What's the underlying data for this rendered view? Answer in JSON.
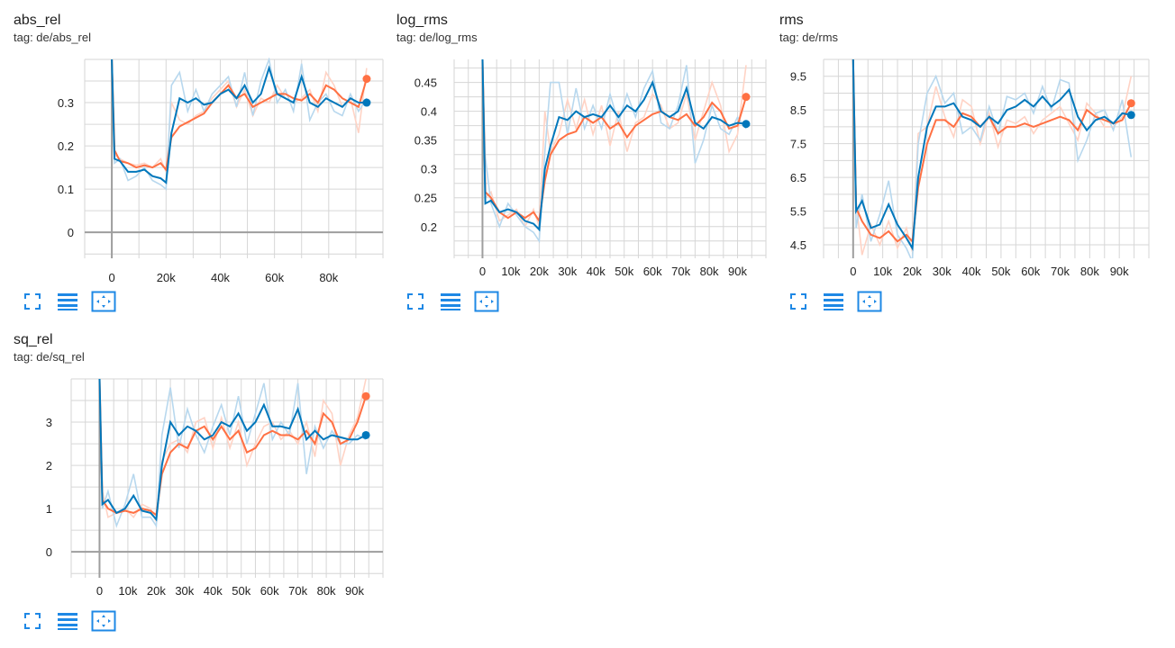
{
  "colors": {
    "blue": "#0077bb",
    "orange": "#ff7043",
    "blue_faint": "#b8d8ee",
    "orange_faint": "#ffd3c5",
    "grid": "#d6d6d6",
    "axis": "#9e9e9e",
    "icon": "#1e88e5"
  },
  "toolbar": {
    "fullscreen_icon": "fullscreen-icon",
    "legend_icon": "legend-icon",
    "fit_icon": "fit-domain-icon"
  },
  "chart_data": [
    {
      "type": "line",
      "title": "abs_rel",
      "tag": "tag: de/abs_rel",
      "xlim": [
        -10000,
        100000
      ],
      "ylim": [
        -0.06,
        0.4
      ],
      "xticks": [
        0,
        20000,
        40000,
        60000,
        80000
      ],
      "xtick_labels": [
        "0",
        "20k",
        "40k",
        "60k",
        "80k"
      ],
      "yticks": [
        0,
        0.1,
        0.2,
        0.3
      ],
      "ytick_labels": [
        "0",
        "0.1",
        "0.2",
        "0.3"
      ],
      "series": [
        {
          "name": "run-orange-smoothed",
          "color": "orange",
          "x": [
            0,
            1000,
            3000,
            6000,
            9000,
            12000,
            15000,
            18000,
            20000,
            22000,
            25000,
            28000,
            31000,
            34000,
            37000,
            40000,
            43000,
            46000,
            49000,
            52000,
            55000,
            58000,
            61000,
            64000,
            67000,
            70000,
            73000,
            76000,
            79000,
            82000,
            85000,
            88000,
            91000,
            94000
          ],
          "y": [
            0.4,
            0.19,
            0.165,
            0.16,
            0.15,
            0.155,
            0.15,
            0.16,
            0.145,
            0.22,
            0.245,
            0.255,
            0.265,
            0.275,
            0.3,
            0.32,
            0.34,
            0.31,
            0.32,
            0.29,
            0.3,
            0.31,
            0.32,
            0.32,
            0.31,
            0.305,
            0.32,
            0.3,
            0.34,
            0.33,
            0.31,
            0.3,
            0.29,
            0.355
          ],
          "faint": [
            0.4,
            0.18,
            0.17,
            0.16,
            0.155,
            0.16,
            0.15,
            0.17,
            0.14,
            0.3,
            0.26,
            0.25,
            0.27,
            0.28,
            0.31,
            0.33,
            0.35,
            0.29,
            0.33,
            0.27,
            0.31,
            0.3,
            0.34,
            0.31,
            0.3,
            0.31,
            0.33,
            0.28,
            0.37,
            0.34,
            0.29,
            0.31,
            0.23,
            0.38
          ]
        },
        {
          "name": "run-blue-smoothed",
          "color": "blue",
          "x": [
            0,
            1000,
            3000,
            6000,
            9000,
            12000,
            15000,
            18000,
            20000,
            22000,
            25000,
            28000,
            31000,
            34000,
            37000,
            40000,
            43000,
            46000,
            49000,
            52000,
            55000,
            58000,
            61000,
            64000,
            67000,
            70000,
            73000,
            76000,
            79000,
            82000,
            85000,
            88000,
            91000,
            94000
          ],
          "y": [
            0.4,
            0.17,
            0.165,
            0.14,
            0.14,
            0.145,
            0.13,
            0.125,
            0.115,
            0.23,
            0.31,
            0.3,
            0.31,
            0.295,
            0.3,
            0.32,
            0.33,
            0.31,
            0.34,
            0.3,
            0.32,
            0.38,
            0.32,
            0.31,
            0.3,
            0.36,
            0.3,
            0.29,
            0.31,
            0.3,
            0.29,
            0.31,
            0.3,
            0.3
          ],
          "faint": [
            0.4,
            0.16,
            0.17,
            0.12,
            0.13,
            0.15,
            0.12,
            0.11,
            0.1,
            0.34,
            0.37,
            0.28,
            0.33,
            0.28,
            0.32,
            0.34,
            0.36,
            0.29,
            0.37,
            0.27,
            0.35,
            0.4,
            0.3,
            0.33,
            0.28,
            0.39,
            0.26,
            0.3,
            0.32,
            0.28,
            0.27,
            0.32,
            0.28,
            0.31
          ]
        }
      ]
    },
    {
      "type": "line",
      "title": "log_rms",
      "tag": "tag: de/log_rms",
      "xlim": [
        -10000,
        100000
      ],
      "ylim": [
        0.145,
        0.49
      ],
      "xticks": [
        0,
        10000,
        20000,
        30000,
        40000,
        50000,
        60000,
        70000,
        80000,
        90000
      ],
      "xtick_labels": [
        "0",
        "10k",
        "20k",
        "30k",
        "40k",
        "50k",
        "60k",
        "70k",
        "80k",
        "90k"
      ],
      "yticks": [
        0.2,
        0.25,
        0.3,
        0.35,
        0.4,
        0.45
      ],
      "ytick_labels": [
        "0.2",
        "0.25",
        "0.3",
        "0.35",
        "0.4",
        "0.45"
      ],
      "series": [
        {
          "name": "run-orange-smoothed",
          "color": "orange",
          "x": [
            0,
            1000,
            3000,
            6000,
            9000,
            12000,
            15000,
            18000,
            20000,
            22000,
            24000,
            27000,
            30000,
            33000,
            36000,
            39000,
            42000,
            45000,
            48000,
            51000,
            54000,
            57000,
            60000,
            63000,
            66000,
            69000,
            72000,
            75000,
            78000,
            81000,
            84000,
            87000,
            90000,
            93000
          ],
          "y": [
            0.49,
            0.26,
            0.25,
            0.225,
            0.215,
            0.225,
            0.215,
            0.225,
            0.21,
            0.28,
            0.325,
            0.35,
            0.36,
            0.365,
            0.39,
            0.38,
            0.39,
            0.37,
            0.38,
            0.355,
            0.375,
            0.385,
            0.395,
            0.4,
            0.39,
            0.385,
            0.395,
            0.375,
            0.39,
            0.415,
            0.4,
            0.37,
            0.375,
            0.425
          ],
          "faint": [
            0.49,
            0.25,
            0.26,
            0.21,
            0.22,
            0.23,
            0.2,
            0.23,
            0.2,
            0.4,
            0.33,
            0.36,
            0.42,
            0.37,
            0.42,
            0.36,
            0.41,
            0.34,
            0.4,
            0.33,
            0.38,
            0.39,
            0.43,
            0.41,
            0.37,
            0.38,
            0.43,
            0.35,
            0.4,
            0.45,
            0.41,
            0.33,
            0.36,
            0.48
          ]
        },
        {
          "name": "run-blue-smoothed",
          "color": "blue",
          "x": [
            0,
            1000,
            3000,
            6000,
            9000,
            12000,
            15000,
            18000,
            20000,
            22000,
            24000,
            27000,
            30000,
            33000,
            36000,
            39000,
            42000,
            45000,
            48000,
            51000,
            54000,
            57000,
            60000,
            63000,
            66000,
            69000,
            72000,
            75000,
            78000,
            81000,
            84000,
            87000,
            90000,
            93000
          ],
          "y": [
            0.49,
            0.24,
            0.245,
            0.225,
            0.23,
            0.225,
            0.21,
            0.205,
            0.195,
            0.3,
            0.34,
            0.39,
            0.385,
            0.4,
            0.39,
            0.395,
            0.39,
            0.41,
            0.39,
            0.41,
            0.4,
            0.42,
            0.45,
            0.4,
            0.39,
            0.4,
            0.44,
            0.38,
            0.37,
            0.39,
            0.385,
            0.375,
            0.38,
            0.378
          ],
          "faint": [
            0.49,
            0.32,
            0.24,
            0.2,
            0.24,
            0.22,
            0.2,
            0.19,
            0.175,
            0.33,
            0.45,
            0.45,
            0.36,
            0.44,
            0.37,
            0.41,
            0.37,
            0.43,
            0.38,
            0.43,
            0.39,
            0.44,
            0.47,
            0.38,
            0.37,
            0.41,
            0.48,
            0.31,
            0.35,
            0.41,
            0.37,
            0.36,
            0.39,
            0.37
          ]
        }
      ]
    },
    {
      "type": "line",
      "title": "rms",
      "tag": "tag: de/rms",
      "xlim": [
        -10000,
        100000
      ],
      "ylim": [
        4.1,
        10
      ],
      "xticks": [
        0,
        10000,
        20000,
        30000,
        40000,
        50000,
        60000,
        70000,
        80000,
        90000
      ],
      "xtick_labels": [
        "0",
        "10k",
        "20k",
        "30k",
        "40k",
        "50k",
        "60k",
        "70k",
        "80k",
        "90k"
      ],
      "yticks": [
        4.5,
        5.5,
        6.5,
        7.5,
        8.5,
        9.5
      ],
      "ytick_labels": [
        "4.5",
        "5.5",
        "6.5",
        "7.5",
        "8.5",
        "9.5"
      ],
      "series": [
        {
          "name": "run-orange-smoothed",
          "color": "orange",
          "x": [
            0,
            1000,
            3000,
            6000,
            9000,
            12000,
            15000,
            18000,
            20000,
            22000,
            25000,
            28000,
            31000,
            34000,
            37000,
            40000,
            43000,
            46000,
            49000,
            52000,
            55000,
            58000,
            61000,
            64000,
            67000,
            70000,
            73000,
            76000,
            79000,
            82000,
            85000,
            88000,
            91000,
            94000
          ],
          "y": [
            10,
            5.6,
            5.2,
            4.8,
            4.7,
            4.9,
            4.6,
            4.8,
            4.6,
            6.2,
            7.5,
            8.2,
            8.2,
            8.0,
            8.4,
            8.3,
            8.0,
            8.3,
            7.8,
            8.0,
            8.0,
            8.1,
            8.0,
            8.1,
            8.2,
            8.3,
            8.2,
            7.9,
            8.5,
            8.3,
            8.2,
            8.1,
            8.2,
            8.7
          ],
          "faint": [
            10,
            5.8,
            4.2,
            5.1,
            4.5,
            5.2,
            4.4,
            5.0,
            4.3,
            7.8,
            8.0,
            9.2,
            8.3,
            7.7,
            8.8,
            8.6,
            7.5,
            8.4,
            7.4,
            8.2,
            8.1,
            8.3,
            7.8,
            8.2,
            8.4,
            8.6,
            8.1,
            7.6,
            8.7,
            8.4,
            8.0,
            8.0,
            8.3,
            9.5
          ]
        },
        {
          "name": "run-blue-smoothed",
          "color": "blue",
          "x": [
            0,
            1000,
            3000,
            6000,
            9000,
            12000,
            15000,
            18000,
            20000,
            22000,
            25000,
            28000,
            31000,
            34000,
            37000,
            40000,
            43000,
            46000,
            49000,
            52000,
            55000,
            58000,
            61000,
            64000,
            67000,
            70000,
            73000,
            76000,
            79000,
            82000,
            85000,
            88000,
            91000,
            94000
          ],
          "y": [
            10,
            5.5,
            5.8,
            5.0,
            5.1,
            5.7,
            5.1,
            4.7,
            4.4,
            6.5,
            8.0,
            8.6,
            8.6,
            8.7,
            8.3,
            8.2,
            8.0,
            8.3,
            8.1,
            8.5,
            8.6,
            8.8,
            8.6,
            8.9,
            8.6,
            8.8,
            9.1,
            8.3,
            7.9,
            8.2,
            8.3,
            8.1,
            8.4,
            8.35
          ],
          "faint": [
            10,
            5.0,
            6.0,
            4.6,
            5.4,
            6.4,
            4.8,
            4.4,
            4.0,
            7.5,
            9.0,
            9.5,
            8.7,
            9.0,
            7.8,
            8.0,
            7.6,
            8.6,
            7.8,
            8.9,
            8.8,
            9.0,
            8.4,
            9.2,
            8.5,
            9.4,
            9.3,
            7.0,
            7.6,
            8.4,
            8.5,
            7.9,
            8.8,
            7.1
          ]
        }
      ]
    },
    {
      "type": "line",
      "title": "sq_rel",
      "tag": "tag: de/sq_rel",
      "xlim": [
        -10000,
        100000
      ],
      "ylim": [
        -0.6,
        4.0
      ],
      "xticks": [
        0,
        10000,
        20000,
        30000,
        40000,
        50000,
        60000,
        70000,
        80000,
        90000
      ],
      "xtick_labels": [
        "0",
        "10k",
        "20k",
        "30k",
        "40k",
        "50k",
        "60k",
        "70k",
        "80k",
        "90k"
      ],
      "yticks": [
        0,
        1,
        2,
        3
      ],
      "ytick_labels": [
        "0",
        "1",
        "2",
        "3"
      ],
      "series": [
        {
          "name": "run-orange-smoothed",
          "color": "orange",
          "x": [
            0,
            1000,
            3000,
            6000,
            9000,
            12000,
            15000,
            18000,
            20000,
            22000,
            25000,
            28000,
            31000,
            34000,
            37000,
            40000,
            43000,
            46000,
            49000,
            52000,
            55000,
            58000,
            61000,
            64000,
            67000,
            70000,
            73000,
            76000,
            79000,
            82000,
            85000,
            88000,
            91000,
            94000
          ],
          "y": [
            4.0,
            1.2,
            1.0,
            0.9,
            0.95,
            0.9,
            1.0,
            0.95,
            0.85,
            1.8,
            2.3,
            2.5,
            2.4,
            2.8,
            2.9,
            2.6,
            2.9,
            2.6,
            2.8,
            2.3,
            2.4,
            2.7,
            2.8,
            2.7,
            2.7,
            2.6,
            2.8,
            2.5,
            3.2,
            3.0,
            2.5,
            2.6,
            3.0,
            3.6
          ],
          "faint": [
            4.0,
            1.4,
            0.8,
            0.9,
            1.0,
            0.8,
            1.1,
            1.0,
            0.7,
            2.1,
            2.5,
            2.6,
            2.3,
            3.0,
            3.1,
            2.4,
            3.1,
            2.4,
            3.0,
            2.0,
            2.5,
            2.9,
            3.0,
            2.6,
            2.8,
            2.5,
            3.0,
            2.2,
            3.5,
            3.2,
            2.0,
            2.7,
            3.1,
            4.0
          ]
        },
        {
          "name": "run-blue-smoothed",
          "color": "blue",
          "x": [
            0,
            1000,
            3000,
            6000,
            9000,
            12000,
            15000,
            18000,
            20000,
            22000,
            25000,
            28000,
            31000,
            34000,
            37000,
            40000,
            43000,
            46000,
            49000,
            52000,
            55000,
            58000,
            61000,
            64000,
            67000,
            70000,
            73000,
            76000,
            79000,
            82000,
            85000,
            88000,
            91000,
            94000
          ],
          "y": [
            4.0,
            1.1,
            1.2,
            0.9,
            1.0,
            1.3,
            0.95,
            0.9,
            0.75,
            2.0,
            3.0,
            2.7,
            2.9,
            2.8,
            2.6,
            2.7,
            3.0,
            2.9,
            3.2,
            2.8,
            3.0,
            3.4,
            2.9,
            2.9,
            2.85,
            3.3,
            2.6,
            2.8,
            2.6,
            2.7,
            2.65,
            2.6,
            2.6,
            2.7
          ],
          "faint": [
            4.0,
            1.0,
            1.4,
            0.6,
            1.1,
            1.8,
            0.8,
            0.8,
            0.6,
            2.7,
            3.8,
            2.4,
            3.3,
            2.7,
            2.3,
            2.9,
            3.4,
            2.7,
            3.6,
            2.5,
            3.2,
            3.9,
            2.6,
            3.0,
            2.7,
            3.9,
            1.8,
            2.9,
            2.4,
            2.8,
            2.5,
            2.5,
            2.7,
            2.6
          ]
        }
      ]
    }
  ]
}
